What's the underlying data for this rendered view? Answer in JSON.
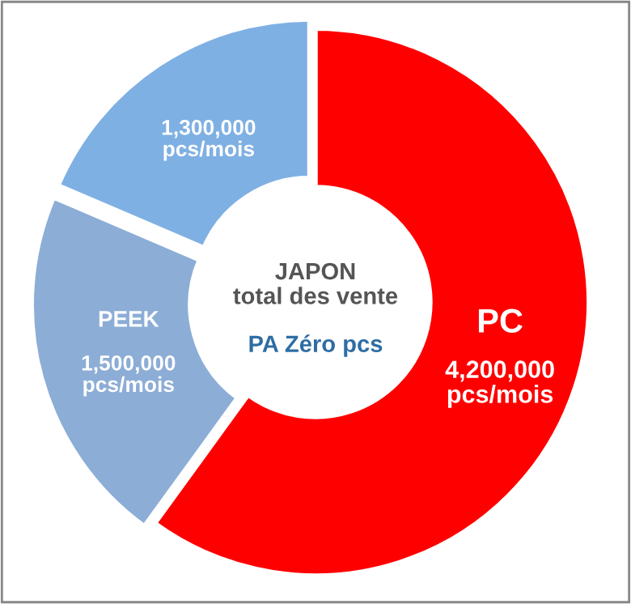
{
  "chart_data": {
    "type": "donut",
    "categories": [
      "PC",
      "PEEK",
      null
    ],
    "values": [
      4200000,
      1500000,
      1300000
    ],
    "colors": [
      "#ff0000",
      "#8cadd6",
      "#7fb0e3"
    ],
    "value_labels": [
      "4,200,000\npcs/mois",
      "1,500,000\npcs/mois",
      "1,300,000\npcs/mois"
    ],
    "annotations": [
      "JAPON\ntotal des vente",
      "PA Zéro pcs"
    ],
    "legend": false
  }
}
